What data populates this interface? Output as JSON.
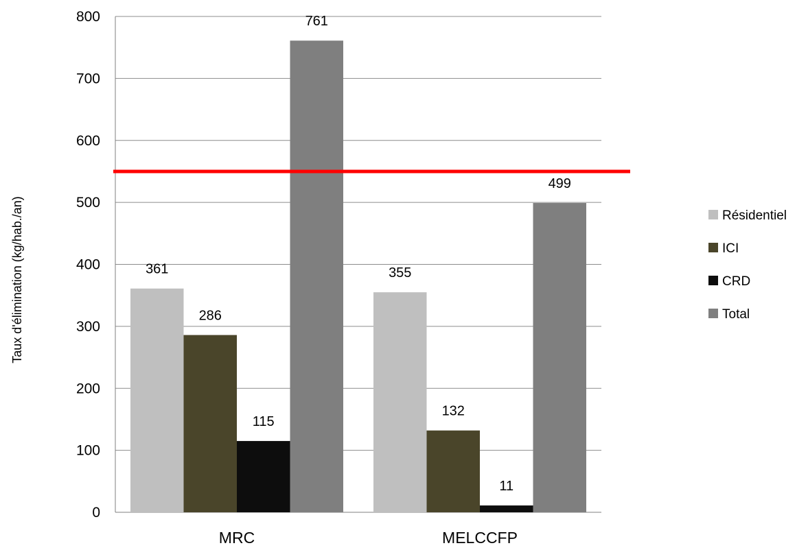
{
  "chart_data": {
    "type": "bar",
    "categories": [
      "MRC",
      "MELCCFP"
    ],
    "series": [
      {
        "name": "Résidentiel",
        "values": [
          361,
          355
        ],
        "color": "#bfbfbf"
      },
      {
        "name": "ICI",
        "values": [
          286,
          132
        ],
        "color": "#4a452a"
      },
      {
        "name": "CRD",
        "values": [
          115,
          11
        ],
        "color": "#0d0d0d"
      },
      {
        "name": "Total",
        "values": [
          761,
          499
        ],
        "color": "#7f7f7f"
      }
    ],
    "data_labels": [
      [
        "361",
        "355"
      ],
      [
        "286",
        "132"
      ],
      [
        "115",
        "11"
      ],
      [
        "761",
        "499"
      ]
    ],
    "ylabel": "Taux d'élimination (kg/hab./an)",
    "xlabel": "",
    "ylim": [
      0,
      800
    ],
    "yticks": [
      "0",
      "100",
      "200",
      "300",
      "400",
      "500",
      "600",
      "700",
      "800"
    ],
    "reference_line": {
      "value": 550,
      "color": "#ff0000"
    },
    "grid": true,
    "legend_position": "right"
  }
}
